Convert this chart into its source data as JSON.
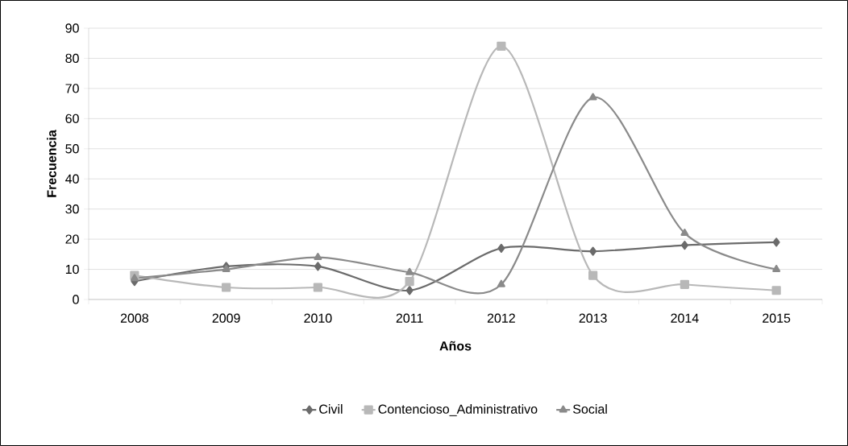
{
  "chart_data": {
    "type": "line",
    "xlabel": "Años",
    "ylabel": "Frecuencia",
    "categories": [
      "2008",
      "2009",
      "2010",
      "2011",
      "2012",
      "2013",
      "2014",
      "2015"
    ],
    "series": [
      {
        "name": "Civil",
        "color": "#6b6b6b",
        "marker": "diamond",
        "values": [
          6,
          11,
          11,
          3,
          17,
          16,
          18,
          19
        ]
      },
      {
        "name": "Contencioso_Administrativo",
        "color": "#b8b8b8",
        "marker": "square",
        "values": [
          8,
          4,
          4,
          6,
          84,
          8,
          5,
          3
        ]
      },
      {
        "name": "Social",
        "color": "#8a8a8a",
        "marker": "triangle",
        "values": [
          7,
          10,
          14,
          9,
          5,
          67,
          22,
          10
        ]
      }
    ],
    "ylim": [
      0,
      90
    ],
    "yticks": [
      0,
      10,
      20,
      30,
      40,
      50,
      60,
      70,
      80,
      90
    ],
    "grid": "y",
    "legend": "bottom",
    "line_style": "solid"
  }
}
